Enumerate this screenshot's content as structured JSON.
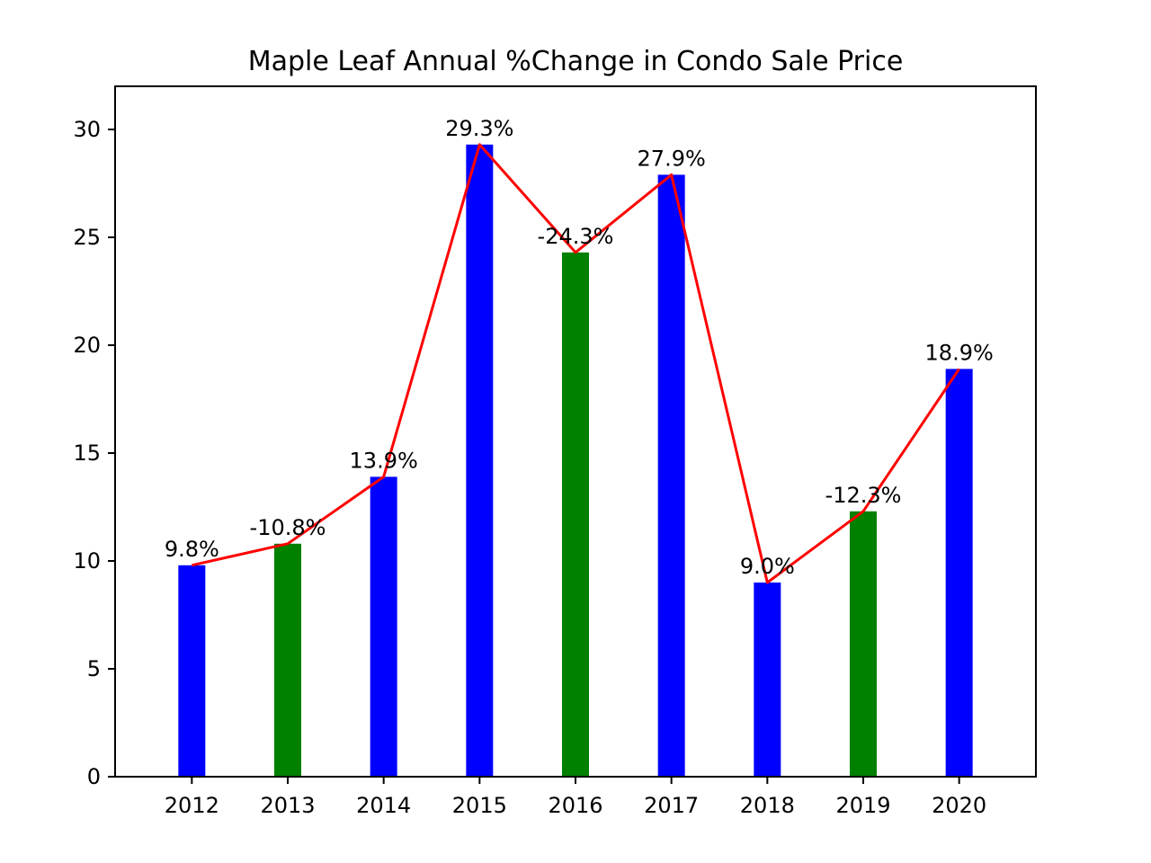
{
  "chart_data": {
    "type": "bar",
    "title": "Maple Leaf Annual %Change in Condo Sale Price",
    "xlabel": "",
    "ylabel": "",
    "categories": [
      "2012",
      "2013",
      "2014",
      "2015",
      "2016",
      "2017",
      "2018",
      "2019",
      "2020"
    ],
    "values": [
      9.8,
      10.8,
      13.9,
      29.3,
      24.3,
      27.9,
      9.0,
      12.3,
      18.9
    ],
    "data_labels": [
      "9.8%",
      "-10.8%",
      "13.9%",
      "29.3%",
      "-24.3%",
      "27.9%",
      "9.0%",
      "-12.3%",
      "18.9%"
    ],
    "bar_colors": [
      "#0000ff",
      "#008000",
      "#0000ff",
      "#0000ff",
      "#008000",
      "#0000ff",
      "#0000ff",
      "#008000",
      "#0000ff"
    ],
    "line": {
      "color": "#ff0000",
      "values": [
        9.8,
        10.8,
        13.9,
        29.3,
        24.3,
        27.9,
        9.0,
        12.3,
        18.9
      ]
    },
    "ylim": [
      0,
      32
    ],
    "yticks": [
      0,
      5,
      10,
      15,
      20,
      25,
      30
    ],
    "grid": false,
    "legend": "none"
  }
}
